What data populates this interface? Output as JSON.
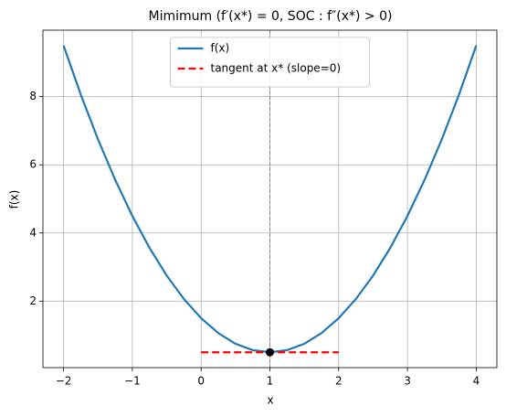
{
  "chart_data": {
    "type": "line",
    "title": "Mimimum (f′(x*) = 0, SOC : f″(x*) > 0)",
    "xlabel": "x",
    "ylabel": "f(x)",
    "xlim": [
      -2.3,
      4.3
    ],
    "ylim": [
      0.05,
      9.95
    ],
    "xticks": [
      {
        "value": -2,
        "label": "−2"
      },
      {
        "value": -1,
        "label": "−1"
      },
      0,
      1,
      2,
      3,
      4
    ],
    "yticks": [
      2,
      4,
      6,
      8
    ],
    "grid": true,
    "legend": "upper center",
    "series": [
      {
        "name": "f(x)",
        "color": "#1f77b4",
        "linestyle": "solid",
        "x": [
          -2,
          -1.75,
          -1.5,
          -1.25,
          -1,
          -0.75,
          -0.5,
          -0.25,
          0,
          0.25,
          0.5,
          0.75,
          1,
          1.25,
          1.5,
          1.75,
          2,
          2.25,
          2.5,
          2.75,
          3,
          3.25,
          3.5,
          3.75,
          4
        ],
        "values": [
          9.5,
          8.0625,
          6.75,
          5.5625,
          4.5,
          3.5625,
          2.75,
          2.0625,
          1.5,
          1.0625,
          0.75,
          0.5625,
          0.5,
          0.5625,
          0.75,
          1.0625,
          1.5,
          2.0625,
          2.75,
          3.5625,
          4.5,
          5.5625,
          6.75,
          8.0625,
          9.5
        ]
      },
      {
        "name": "tangent at x* (slope=0)",
        "color": "#ff0000",
        "linestyle": "dashed",
        "x": [
          0,
          2
        ],
        "values": [
          0.5,
          0.5
        ]
      }
    ],
    "vline": {
      "x": 1,
      "color": "#808080"
    },
    "point": {
      "x": 1,
      "y": 0.5,
      "color": "#000000"
    }
  }
}
